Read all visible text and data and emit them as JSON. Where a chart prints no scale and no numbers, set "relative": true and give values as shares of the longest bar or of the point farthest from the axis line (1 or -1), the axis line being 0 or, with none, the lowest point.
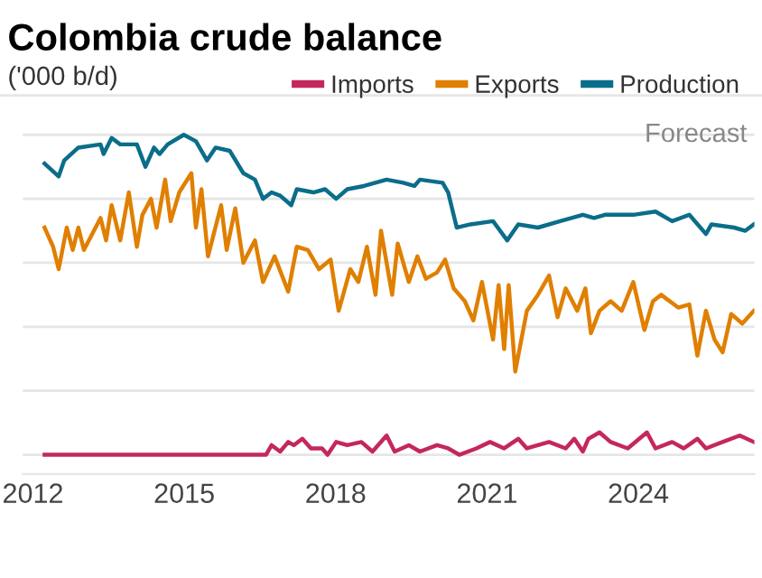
{
  "chart_data": {
    "type": "line",
    "title": "Colombia crude balance",
    "subtitle": "('000 b/d)",
    "relative": true,
    "xlim": [
      2011.8,
      2026.3
    ],
    "xticks": [
      2012,
      2015,
      2018,
      2021,
      2024
    ],
    "grid": "y",
    "legend": "top right",
    "tick_labels": "x",
    "line_style": "solid",
    "annotations": [
      "Forecast"
    ],
    "series": [
      {
        "name": "Imports",
        "color": "#c4285a",
        "x": [
          2012.23,
          2016.62,
          2016.73,
          2016.9,
          2017.06,
          2017.17,
          2017.34,
          2017.51,
          2017.73,
          2017.84,
          2018.01,
          2018.23,
          2018.51,
          2018.73,
          2019.01,
          2019.17,
          2019.45,
          2019.67,
          2020.01,
          2020.23,
          2020.45,
          2020.79,
          2021.06,
          2021.34,
          2021.62,
          2021.79,
          2022.23,
          2022.56,
          2022.73,
          2022.9,
          2023.01,
          2023.23,
          2023.45,
          2023.79,
          2024.17,
          2024.34,
          2024.67,
          2024.9,
          2025.17,
          2025.34,
          2025.67,
          2026.01,
          2026.29
        ],
        "values": [
          0,
          0,
          0.03,
          0.01,
          0.04,
          0.03,
          0.05,
          0.02,
          0.02,
          0.0,
          0.04,
          0.03,
          0.04,
          0.01,
          0.06,
          0.01,
          0.03,
          0.01,
          0.03,
          0.02,
          0.0,
          0.02,
          0.04,
          0.02,
          0.05,
          0.02,
          0.04,
          0.02,
          0.05,
          0.01,
          0.05,
          0.07,
          0.04,
          0.02,
          0.07,
          0.02,
          0.04,
          0.02,
          0.05,
          0.02,
          0.04,
          0.06,
          0.04
        ]
      },
      {
        "name": "Exports",
        "color": "#e07f00",
        "x": [
          2012.23,
          2012.4,
          2012.51,
          2012.67,
          2012.79,
          2012.9,
          2013.01,
          2013.34,
          2013.45,
          2013.56,
          2013.73,
          2013.9,
          2014.06,
          2014.17,
          2014.34,
          2014.45,
          2014.62,
          2014.73,
          2014.9,
          2015.14,
          2015.23,
          2015.34,
          2015.47,
          2015.73,
          2015.84,
          2016.01,
          2016.17,
          2016.4,
          2016.56,
          2016.79,
          2017.06,
          2017.23,
          2017.45,
          2017.67,
          2017.9,
          2018.06,
          2018.29,
          2018.45,
          2018.62,
          2018.79,
          2018.9,
          2019.12,
          2019.23,
          2019.45,
          2019.62,
          2019.79,
          2020.01,
          2020.17,
          2020.34,
          2020.56,
          2020.73,
          2020.9,
          2021.12,
          2021.23,
          2021.34,
          2021.43,
          2021.56,
          2021.79,
          2022.01,
          2022.23,
          2022.4,
          2022.56,
          2022.79,
          2022.95,
          2023.06,
          2023.23,
          2023.45,
          2023.67,
          2023.9,
          2024.12,
          2024.29,
          2024.45,
          2024.79,
          2025.01,
          2025.17,
          2025.34,
          2025.51,
          2025.67,
          2025.84,
          2026.06,
          2026.29
        ],
        "values": [
          0.71,
          0.65,
          0.58,
          0.71,
          0.64,
          0.71,
          0.64,
          0.74,
          0.67,
          0.78,
          0.67,
          0.82,
          0.65,
          0.75,
          0.8,
          0.71,
          0.86,
          0.73,
          0.82,
          0.88,
          0.71,
          0.83,
          0.62,
          0.78,
          0.64,
          0.77,
          0.6,
          0.67,
          0.54,
          0.62,
          0.51,
          0.65,
          0.64,
          0.58,
          0.61,
          0.45,
          0.58,
          0.54,
          0.65,
          0.5,
          0.7,
          0.5,
          0.66,
          0.54,
          0.62,
          0.55,
          0.57,
          0.61,
          0.52,
          0.48,
          0.42,
          0.54,
          0.36,
          0.53,
          0.33,
          0.53,
          0.26,
          0.45,
          0.5,
          0.56,
          0.43,
          0.52,
          0.45,
          0.52,
          0.38,
          0.45,
          0.48,
          0.45,
          0.54,
          0.39,
          0.48,
          0.5,
          0.46,
          0.47,
          0.31,
          0.45,
          0.36,
          0.32,
          0.44,
          0.41,
          0.45
        ]
      },
      {
        "name": "Production",
        "color": "#0b6d8a",
        "x": [
          2012.23,
          2012.51,
          2012.62,
          2012.9,
          2013.34,
          2013.4,
          2013.56,
          2013.73,
          2014.06,
          2014.23,
          2014.4,
          2014.51,
          2014.67,
          2014.99,
          2015.23,
          2015.45,
          2015.62,
          2015.9,
          2016.17,
          2016.4,
          2016.56,
          2016.73,
          2016.9,
          2017.12,
          2017.23,
          2017.56,
          2017.79,
          2018.01,
          2018.23,
          2018.56,
          2019.01,
          2019.34,
          2019.56,
          2019.67,
          2020.12,
          2020.23,
          2020.4,
          2020.67,
          2021.12,
          2021.4,
          2021.62,
          2022.01,
          2022.45,
          2022.9,
          2023.12,
          2023.34,
          2023.9,
          2024.34,
          2024.67,
          2025.01,
          2025.34,
          2025.45,
          2025.9,
          2026.12,
          2026.29
        ],
        "values": [
          0.91,
          0.87,
          0.92,
          0.96,
          0.97,
          0.94,
          0.99,
          0.97,
          0.97,
          0.9,
          0.96,
          0.94,
          0.97,
          1.0,
          0.98,
          0.92,
          0.96,
          0.95,
          0.88,
          0.86,
          0.8,
          0.82,
          0.81,
          0.78,
          0.83,
          0.82,
          0.83,
          0.8,
          0.83,
          0.84,
          0.86,
          0.85,
          0.84,
          0.86,
          0.85,
          0.82,
          0.71,
          0.72,
          0.73,
          0.67,
          0.72,
          0.71,
          0.73,
          0.75,
          0.74,
          0.75,
          0.75,
          0.76,
          0.73,
          0.75,
          0.69,
          0.72,
          0.71,
          0.7,
          0.72
        ]
      }
    ]
  }
}
